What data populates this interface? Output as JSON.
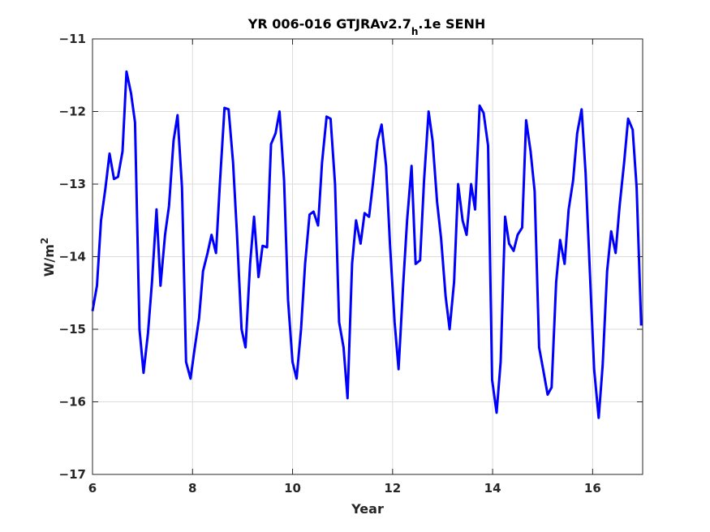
{
  "chart_data": {
    "type": "line",
    "title": "YR 006-016 GTJRAv2.7",
    "title_subscript": "h",
    "title_suffix": ".1e SENH",
    "xlabel": "Year",
    "ylabel": "W/m",
    "ylabel_superscript": "2",
    "xlim": [
      6,
      17
    ],
    "ylim": [
      -17,
      -11
    ],
    "xticks": [
      6,
      8,
      10,
      12,
      14,
      16
    ],
    "yticks": [
      -17,
      -16,
      -15,
      -14,
      -13,
      -12,
      -11
    ],
    "xtick_labels": [
      "6",
      "8",
      "10",
      "12",
      "14",
      "16"
    ],
    "ytick_labels": [
      "−17",
      "−16",
      "−15",
      "−14",
      "−13",
      "−12",
      "−11"
    ],
    "grid": true,
    "line_color": "#0000ff",
    "series": [
      {
        "x": [
          6.0,
          6.09,
          6.17,
          6.26,
          6.34,
          6.43,
          6.51,
          6.6,
          6.68,
          6.77,
          6.85,
          6.94,
          7.02,
          7.11,
          7.19,
          7.28,
          7.36,
          7.45,
          7.53,
          7.62,
          7.7,
          7.79,
          7.87,
          7.96,
          8.04,
          8.13,
          8.21,
          8.3,
          8.38,
          8.47,
          8.55,
          8.64,
          8.72,
          8.81,
          8.89,
          8.98,
          9.06,
          9.15,
          9.23,
          9.32,
          9.4,
          9.49,
          9.57,
          9.66,
          9.74,
          9.83,
          9.91,
          10.0,
          10.08,
          10.17,
          10.25,
          10.34,
          10.42,
          10.51,
          10.59,
          10.68,
          10.76,
          10.85,
          10.93,
          11.02,
          11.1,
          11.19,
          11.27,
          11.36,
          11.44,
          11.53,
          11.61,
          11.7,
          11.78,
          11.87,
          11.95,
          12.04,
          12.12,
          12.21,
          12.29,
          12.38,
          12.46,
          12.55,
          12.63,
          12.72,
          12.8,
          12.89,
          12.97,
          13.06,
          13.14,
          13.23,
          13.31,
          13.4,
          13.48,
          13.57,
          13.65,
          13.74,
          13.82,
          13.91,
          13.99,
          14.08,
          14.16,
          14.25,
          14.33,
          14.42,
          14.5,
          14.59,
          14.67,
          14.76,
          14.84,
          14.93,
          15.01,
          15.1,
          15.18,
          15.27,
          15.35,
          15.44,
          15.52,
          15.61,
          15.69,
          15.78,
          15.86,
          15.95,
          16.03,
          16.12,
          16.2,
          16.29,
          16.37,
          16.46,
          16.54,
          16.63,
          16.71,
          16.8,
          16.88,
          16.97
        ],
        "y": [
          -14.75,
          -14.4,
          -13.5,
          -13.05,
          -12.58,
          -12.93,
          -12.9,
          -12.55,
          -11.45,
          -11.75,
          -12.15,
          -15.0,
          -15.6,
          -15.05,
          -14.35,
          -13.35,
          -14.4,
          -13.7,
          -13.3,
          -12.4,
          -12.05,
          -13.05,
          -15.45,
          -15.68,
          -15.28,
          -14.85,
          -14.2,
          -13.95,
          -13.7,
          -13.95,
          -12.95,
          -11.95,
          -11.97,
          -12.7,
          -13.7,
          -15.0,
          -15.25,
          -14.1,
          -13.45,
          -14.28,
          -13.85,
          -13.87,
          -12.45,
          -12.3,
          -12.0,
          -12.95,
          -14.6,
          -15.45,
          -15.68,
          -15.0,
          -14.1,
          -13.42,
          -13.38,
          -13.57,
          -12.7,
          -12.07,
          -12.1,
          -13.0,
          -14.9,
          -15.25,
          -15.95,
          -14.1,
          -13.5,
          -13.82,
          -13.4,
          -13.45,
          -12.97,
          -12.4,
          -12.18,
          -12.75,
          -13.85,
          -14.9,
          -15.55,
          -14.4,
          -13.5,
          -12.75,
          -14.1,
          -14.05,
          -12.95,
          -12.0,
          -12.4,
          -13.25,
          -13.75,
          -14.55,
          -15.0,
          -14.35,
          -13.0,
          -13.5,
          -13.7,
          -13.0,
          -13.35,
          -11.92,
          -12.02,
          -12.47,
          -15.7,
          -16.15,
          -15.45,
          -13.45,
          -13.82,
          -13.92,
          -13.7,
          -13.6,
          -12.12,
          -12.55,
          -13.1,
          -15.25,
          -15.55,
          -15.9,
          -15.8,
          -14.35,
          -13.77,
          -14.1,
          -13.35,
          -12.95,
          -12.3,
          -11.97,
          -12.85,
          -14.3,
          -15.55,
          -16.22,
          -15.5,
          -14.2,
          -13.65,
          -13.95,
          -13.3,
          -12.7,
          -12.1,
          -12.25,
          -13.05,
          -14.95
        ]
      }
    ]
  }
}
